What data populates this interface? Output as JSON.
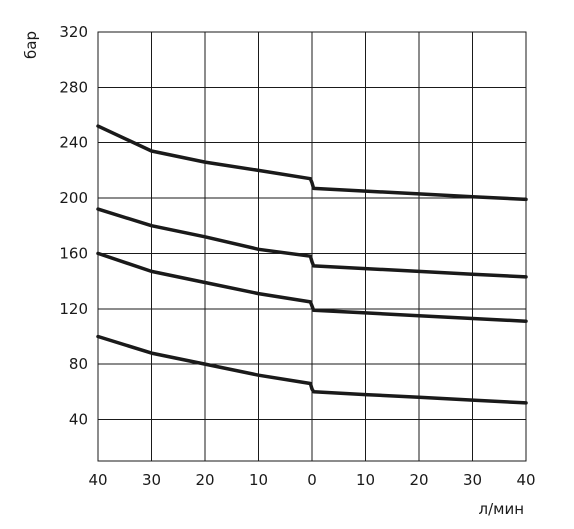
{
  "chart_data": {
    "type": "line",
    "title": "",
    "ylabel": "бар",
    "xlabel": "л/мин",
    "x_ticks": [
      "40",
      "30",
      "20",
      "10",
      "0",
      "10",
      "20",
      "30",
      "40"
    ],
    "y_ticks": [
      "40",
      "80",
      "120",
      "160",
      "200",
      "240",
      "280",
      "320"
    ],
    "ylim": [
      10,
      320
    ],
    "grid": true,
    "legend": "none",
    "line_color": "#1a1a1a",
    "series": [
      {
        "x": [
          -40,
          -30,
          -20,
          -10,
          -0.3,
          0,
          0.3,
          10,
          20,
          30,
          40
        ],
        "y": [
          252,
          234,
          226,
          220,
          214,
          211,
          207,
          205,
          203,
          201,
          199
        ]
      },
      {
        "x": [
          -40,
          -30,
          -20,
          -10,
          -0.3,
          0,
          0.3,
          10,
          20,
          30,
          40
        ],
        "y": [
          192,
          180,
          172,
          163,
          158,
          154,
          151,
          149,
          147,
          145,
          143
        ]
      },
      {
        "x": [
          -40,
          -30,
          -20,
          -10,
          -0.3,
          0,
          0.3,
          10,
          20,
          30,
          40
        ],
        "y": [
          160,
          147,
          139,
          131,
          125,
          122,
          119,
          117,
          115,
          113,
          111
        ]
      },
      {
        "x": [
          -40,
          -30,
          -20,
          -10,
          -0.3,
          0,
          0.3,
          10,
          20,
          30,
          40
        ],
        "y": [
          100,
          88,
          80,
          72,
          66,
          62,
          60,
          58,
          56,
          54,
          52
        ]
      }
    ]
  }
}
